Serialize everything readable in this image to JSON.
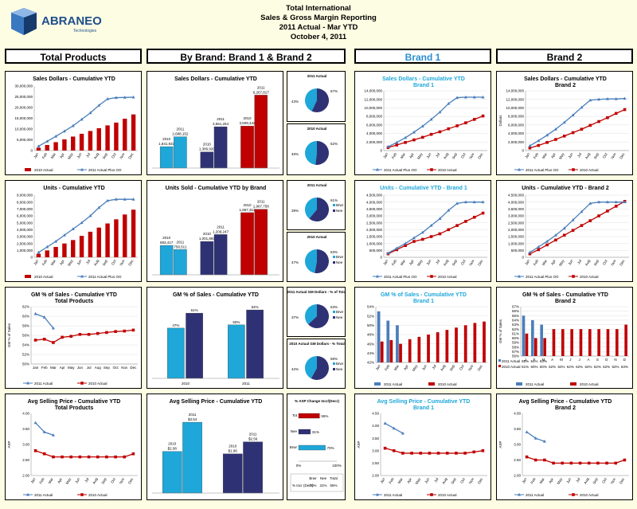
{
  "logo": {
    "name": "ABRANEO",
    "sub": "Technologies"
  },
  "header": {
    "line1": "Total International",
    "line2": "Sales & Gross Margin Reporting",
    "line3": "2011 Actual - Mar YTD",
    "line4": "October 4, 2011"
  },
  "sections": {
    "total": "Total Products",
    "bybrand": "By Brand: Brand 1 & Brand 2",
    "brand1": "Brand 1",
    "brand2": "Brand 2"
  },
  "colors": {
    "red": "#c00000",
    "blue": "#4a7ebb",
    "navy": "#2e3274",
    "cyan": "#1ea7d8",
    "title_blue": "#1ea7d8"
  },
  "months": [
    "Jan",
    "Feb",
    "Mar",
    "Apr",
    "May",
    "Jun",
    "Jul",
    "Aug",
    "Sep",
    "Oct",
    "Nov",
    "Dec"
  ],
  "months_short": [
    "J",
    "F",
    "M",
    "A",
    "M",
    "J",
    "J",
    "A",
    "S",
    "O",
    "N",
    "D"
  ],
  "chart_data": [
    {
      "id": "total_sales",
      "type": "bar",
      "title": "Sales Dollars - Cumulative YTD",
      "ylim": [
        0,
        30000000
      ],
      "yticks": [
        "30,000,000",
        "25,000,000",
        "20,000,000",
        "15,000,000",
        "10,000,000",
        "5,000,000",
        "0"
      ],
      "series": [
        {
          "name": "2010 Actual",
          "kind": "bar",
          "values": [
            1300000,
            2600000,
            3900000,
            5200000,
            6500000,
            7800000,
            9100000,
            10400000,
            11700000,
            13000000,
            14800000,
            16800000
          ]
        },
        {
          "name": "2011 Actual Plus OO",
          "kind": "line",
          "values": [
            2000000,
            4300000,
            6600000,
            9000000,
            11500000,
            14500000,
            17500000,
            21000000,
            24000000,
            24600000,
            24700000,
            24800000
          ]
        }
      ]
    },
    {
      "id": "total_units",
      "type": "bar",
      "title": "Units - Cumulative YTD",
      "ylim": [
        0,
        9000000
      ],
      "yticks": [
        "9,000,000",
        "8,000,000",
        "7,000,000",
        "6,000,000",
        "5,000,000",
        "4,000,000",
        "3,000,000",
        "2,000,000",
        "1,000,000",
        "0"
      ],
      "series": [
        {
          "name": "2010 Actual",
          "kind": "bar",
          "values": [
            500000,
            1000000,
            1500000,
            2000000,
            2500000,
            3100000,
            3700000,
            4300000,
            4900000,
            5500000,
            6200000,
            6900000
          ]
        },
        {
          "name": "2011 Actual Plus OO",
          "kind": "line",
          "values": [
            700000,
            1500000,
            2300000,
            3200000,
            4100000,
            5000000,
            6000000,
            7200000,
            8200000,
            8400000,
            8400000,
            8400000
          ]
        }
      ]
    },
    {
      "id": "total_gm",
      "type": "line",
      "title": "GM % of Sales - Cumulative YTD",
      "subtitle": "Total Products",
      "ylabel": "GM % of Sales",
      "ylim": [
        50,
        62
      ],
      "yticks": [
        "62%",
        "60%",
        "58%",
        "56%",
        "54%",
        "52%",
        "50%"
      ],
      "series": [
        {
          "name": "2011 Actual",
          "values": [
            60.5,
            59.8,
            57.5
          ]
        },
        {
          "name": "2010 Actual",
          "values": [
            55,
            55.2,
            54.5,
            55.6,
            55.8,
            56.2,
            56.2,
            56.4,
            56.6,
            56.8,
            56.9,
            57.1
          ]
        }
      ]
    },
    {
      "id": "total_asp",
      "type": "line",
      "title": "Avg Selling Price - Cumulative YTD",
      "subtitle": "Total Products",
      "ylabel": "ASP",
      "ylim": [
        2.0,
        4.0
      ],
      "yticks": [
        "4.00",
        "3.50",
        "3.00",
        "2.50",
        "2.00"
      ],
      "series": [
        {
          "name": "2011 Actual",
          "values": [
            3.7,
            3.4,
            3.3
          ]
        },
        {
          "name": "2010 Actual",
          "values": [
            2.8,
            2.7,
            2.6,
            2.6,
            2.6,
            2.6,
            2.6,
            2.6,
            2.6,
            2.6,
            2.6,
            2.7
          ]
        }
      ]
    },
    {
      "id": "brand_sales",
      "type": "bar",
      "title": "Sales Dollars - Cumulative YTD",
      "groups": [
        {
          "label2010": "2010",
          "v2010": 1841933,
          "t2010": "1,841,933",
          "label2011": "2011",
          "v2011": 2688152,
          "t2011": "2,688,152",
          "c2010": "cyan",
          "c2011": "cyan"
        },
        {
          "label2010": "2010",
          "v2010": 1386920,
          "t2010": "1,386,920",
          "label2011": "2011",
          "v2011": 3551254,
          "t2011": "3,551,254",
          "c2010": "navy",
          "c2011": "navy"
        },
        {
          "label2010": "2010",
          "v2010": 3609442,
          "t2010": "3,609,442",
          "label2011": "2011",
          "v2011": 6267817,
          "t2011": "6,267,817",
          "c2010": "red",
          "c2011": "red"
        }
      ]
    },
    {
      "id": "brand_units",
      "type": "bar",
      "title": "Units Sold - Cumulative YTD by Brand",
      "groups": [
        {
          "label2010": "2010",
          "v2010": 883417,
          "t2010": "883,417",
          "label2011": "2011",
          "v2011": 758511,
          "t2011": "758,511",
          "c2010": "cyan",
          "c2011": "cyan"
        },
        {
          "label2010": "2010",
          "v2010": 1001893,
          "t2010": "1,001,893",
          "label2011": "2011",
          "v2011": 1209247,
          "t2011": "1,209,247",
          "c2010": "navy",
          "c2011": "navy"
        },
        {
          "label2010": "2010",
          "v2010": 1867312,
          "t2010": "1,867,312",
          "label2011": "2011",
          "v2011": 1967758,
          "t2011": "1,967,758",
          "c2010": "red",
          "c2011": "red"
        }
      ]
    },
    {
      "id": "brand_gm",
      "type": "bar",
      "title": "GM % of Sales - Cumulative YTD",
      "categories": [
        "2010",
        "2011"
      ],
      "series": [
        {
          "name": "Brand 1",
          "values": [
            47,
            50
          ],
          "labels": [
            "47%",
            "50%"
          ],
          "color": "cyan"
        },
        {
          "name": "Brand 2",
          "values": [
            61,
            64
          ],
          "labels": [
            "61%",
            "64%"
          ],
          "color": "navy"
        }
      ]
    },
    {
      "id": "brand_asp",
      "type": "bar",
      "title": "Avg Selling Price - Cumulative YTD",
      "groups": [
        {
          "label2010": "2010",
          "v2010": 2.08,
          "t2010": "$2.08",
          "label2011": "2011",
          "v2011": 3.54,
          "t2011": "$3.54",
          "c2010": "cyan",
          "c2011": "cyan"
        },
        {
          "label2010": "2010",
          "v2010": 1.96,
          "t2010": "$1.96",
          "label2011": "2011",
          "v2011": 2.56,
          "t2011": "$2.56",
          "c2010": "navy",
          "c2011": "navy"
        }
      ]
    },
    {
      "id": "pies",
      "type": "pie",
      "items": [
        {
          "title": "2011 Actual",
          "a": 43,
          "b": 57,
          "la": "43%",
          "lb": "57%"
        },
        {
          "title": "2010 Actual",
          "a": 48,
          "b": 52,
          "la": "48%",
          "lb": "52%"
        },
        {
          "title": "2011 Actual",
          "a": 39,
          "b": 61,
          "la": "39%",
          "lb": "61%",
          "legend": [
            "Brwr",
            "Nee"
          ]
        },
        {
          "title": "2010 Actual",
          "a": 47,
          "b": 53,
          "la": "47%",
          "lb": "53%",
          "legend": [
            "Brwr",
            "Nee"
          ]
        },
        {
          "title": "2011 Actual GM Dollars - % of Total",
          "a": 37,
          "b": 63,
          "la": "37%",
          "lb": "63%",
          "legend": [
            "Brwr",
            "Nee"
          ]
        },
        {
          "title": "2010 Actual GM Dollars - % Total",
          "a": 42,
          "b": 58,
          "la": "42%",
          "lb": "58%",
          "legend": [
            "Brwr",
            "Nee"
          ]
        }
      ]
    },
    {
      "id": "asp_change",
      "type": "bar",
      "title": "% ASP Change Incr/(Decr)",
      "categories": [
        "Tot",
        "Nee",
        "Brwr"
      ],
      "values": [
        55,
        31,
        70
      ],
      "labels": [
        "55%",
        "31%",
        "70%"
      ],
      "colors": [
        "red",
        "navy",
        "cyan"
      ],
      "xticks": [
        "0%",
        "100%"
      ],
      "table": {
        "head": [
          "Brwr",
          "Nee",
          "Total"
        ],
        "rowlabel": "% Incr (Decr)",
        "cells": [
          "70%",
          "31%",
          "55%"
        ]
      }
    },
    {
      "id": "b1_sales",
      "type": "line",
      "title": "Sales Dollars - Cumulative YTD",
      "subtitle": "Brand 1",
      "ylim": [
        0,
        14000000
      ],
      "yticks": [
        "14,000,000",
        "12,000,000",
        "10,000,000",
        "8,000,000",
        "6,000,000",
        "4,000,000",
        "2,000,000",
        "0"
      ],
      "series": [
        {
          "name": "2011 Actual Plus OO",
          "values": [
            900000,
            1900000,
            3000000,
            4300000,
            5700000,
            7300000,
            9000000,
            11000000,
            12400000,
            12500000,
            12500000,
            12500000
          ]
        },
        {
          "name": "2010 Actual",
          "values": [
            700000,
            1300000,
            1900000,
            2500000,
            3100000,
            3800000,
            4400000,
            5100000,
            5800000,
            6500000,
            7300000,
            8100000
          ]
        }
      ]
    },
    {
      "id": "b1_units",
      "type": "line",
      "title": "Units - Cumulative YTD - Brand 1",
      "ylim": [
        0,
        4500000
      ],
      "yticks": [
        "4,500,000",
        "4,000,000",
        "3,500,000",
        "3,000,000",
        "2,500,000",
        "2,000,000",
        "1,500,000",
        "1,000,000",
        "500,000",
        "0"
      ],
      "series": [
        {
          "name": "2011 Actual Plus OO",
          "values": [
            300000,
            650000,
            1000000,
            1400000,
            1800000,
            2300000,
            2800000,
            3400000,
            3900000,
            4000000,
            4000000,
            4000000
          ]
        },
        {
          "name": "2010 Actual",
          "values": [
            250000,
            550000,
            850000,
            1150000,
            1300000,
            1500000,
            1700000,
            2000000,
            2300000,
            2600000,
            2900000,
            3200000
          ]
        }
      ]
    },
    {
      "id": "b1_gm",
      "type": "bar",
      "title": "GM % of Sales - Cumulative YTD",
      "subtitle": "Brand 1",
      "ylim": [
        42,
        54
      ],
      "yticks": [
        "54%",
        "52%",
        "50%",
        "48%",
        "46%",
        "44%",
        "42%"
      ],
      "series": [
        {
          "name": "2011 Actual",
          "values": [
            53,
            51,
            50
          ]
        },
        {
          "name": "2010 Actual",
          "values": [
            46.5,
            46.8,
            46.0,
            47.0,
            47.5,
            48.0,
            48.5,
            49.0,
            49.5,
            50.0,
            50.5,
            50.8
          ]
        }
      ]
    },
    {
      "id": "b1_asp",
      "type": "line",
      "title": "Avg Selling Price - Cumulative YTD",
      "subtitle": "Brand 1",
      "ylabel": "ASP",
      "ylim": [
        2.0,
        4.5
      ],
      "yticks": [
        "4.50",
        "4.00",
        "3.50",
        "3.00",
        "2.50",
        "2.00"
      ],
      "series": [
        {
          "name": "2011 Actual",
          "values": [
            4.1,
            3.9,
            3.7
          ]
        },
        {
          "name": "2010 Actual",
          "values": [
            3.1,
            3.0,
            2.9,
            2.9,
            2.9,
            2.9,
            2.9,
            2.9,
            2.9,
            2.9,
            2.95,
            3.0
          ]
        }
      ]
    },
    {
      "id": "b2_sales",
      "type": "line",
      "title": "Sales Dollars - Cumulative YTD",
      "subtitle": "Brand 2",
      "ylabel": "Dollars",
      "ylim": [
        0,
        14000000
      ],
      "yticks": [
        "14,000,000",
        "12,000,000",
        "10,000,000",
        "8,000,000",
        "6,000,000",
        "4,000,000",
        "2,000,000",
        "0"
      ],
      "series": [
        {
          "name": "2011 Actual Plus OO",
          "values": [
            1100000,
            2300000,
            3600000,
            5000000,
            6600000,
            8300000,
            10100000,
            11800000,
            12000000,
            12100000,
            12100000,
            12200000
          ]
        },
        {
          "name": "2010 Actual",
          "values": [
            600000,
            1200000,
            1900000,
            2600000,
            3400000,
            4200000,
            5000000,
            5900000,
            6800000,
            7700000,
            8700000,
            9600000
          ]
        }
      ]
    },
    {
      "id": "b2_units",
      "type": "line",
      "title": "Units - Cumulative YTD - Brand 2",
      "ylim": [
        0,
        4500000
      ],
      "yticks": [
        "4,500,000",
        "4,000,000",
        "3,500,000",
        "3,000,000",
        "2,500,000",
        "2,000,000",
        "1,500,000",
        "1,000,000",
        "500,000",
        "0"
      ],
      "series": [
        {
          "name": "2011 Actual Plus OO",
          "values": [
            350000,
            750000,
            1150000,
            1600000,
            2100000,
            2700000,
            3300000,
            3900000,
            4000000,
            4000000,
            4000000,
            4000000
          ]
        },
        {
          "name": "2010 Actual",
          "values": [
            250000,
            550000,
            900000,
            1250000,
            1600000,
            1950000,
            2300000,
            2650000,
            3000000,
            3350000,
            3700000,
            4050000
          ]
        }
      ]
    },
    {
      "id": "b2_gm",
      "type": "bar",
      "title": "GM % of Sales - Cumulative YTD",
      "subtitle": "Brand 2",
      "ylabel": "GM % of Sales",
      "ylim": [
        56,
        67
      ],
      "yticks": [
        "67%",
        "66%",
        "65%",
        "64%",
        "63%",
        "62%",
        "61%",
        "60%",
        "59%",
        "58%",
        "57%",
        "56%"
      ],
      "series": [
        {
          "name": "2011 Actual",
          "values": [
            65,
            64,
            63
          ],
          "labels": [
            "65%",
            "64%",
            "63%"
          ]
        },
        {
          "name": "2010 Actual",
          "values": [
            61,
            60,
            60,
            62,
            62,
            62,
            62,
            62,
            62,
            62,
            62,
            63
          ],
          "labels": [
            "61%",
            "60%",
            "60%",
            "62%",
            "62%",
            "62%",
            "62%",
            "62%",
            "62%",
            "62%",
            "62%",
            "63%"
          ]
        }
      ]
    },
    {
      "id": "b2_asp",
      "type": "line",
      "title": "Avg Selling Price - Cumulative YTD",
      "subtitle": "Brand 2",
      "ylabel": "ASP",
      "ylim": [
        2.0,
        4.0
      ],
      "yticks": [
        "4.00",
        "3.50",
        "3.00",
        "2.50",
        "2.00"
      ],
      "series": [
        {
          "name": "2011 Actual",
          "values": [
            3.4,
            3.2,
            3.1
          ]
        },
        {
          "name": "2010 Actual",
          "values": [
            2.6,
            2.5,
            2.5,
            2.4,
            2.4,
            2.4,
            2.4,
            2.4,
            2.4,
            2.4,
            2.4,
            2.5
          ]
        }
      ]
    }
  ]
}
